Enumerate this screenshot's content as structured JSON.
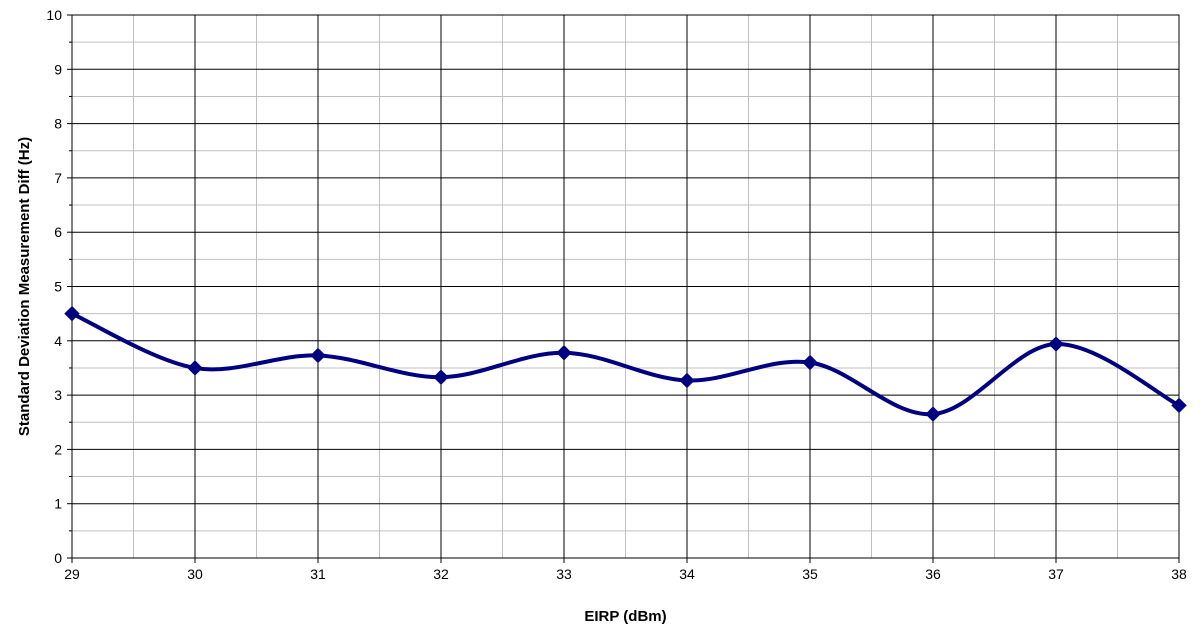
{
  "chart_data": {
    "type": "line",
    "xlabel": "EIRP (dBm)",
    "ylabel": "Standard Deviation Measurement Diff (Hz)",
    "xlim": [
      29,
      38
    ],
    "ylim": [
      0,
      10
    ],
    "x_ticks": [
      29,
      30,
      31,
      32,
      33,
      34,
      35,
      36,
      37,
      38
    ],
    "y_ticks": [
      0,
      1,
      2,
      3,
      4,
      5,
      6,
      7,
      8,
      9,
      10
    ],
    "grid": true,
    "smoothed": true,
    "marker": "diamond",
    "series": [
      {
        "color": "#000080",
        "x": [
          29,
          30,
          31,
          32,
          33,
          34,
          35,
          36,
          37,
          38
        ],
        "values": [
          4.5,
          3.5,
          3.73,
          3.33,
          3.78,
          3.27,
          3.6,
          2.65,
          3.94,
          2.81
        ]
      }
    ]
  }
}
